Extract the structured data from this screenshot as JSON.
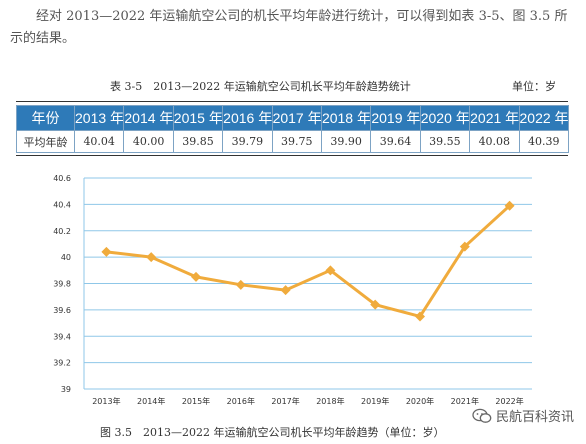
{
  "paragraph": {
    "text": "经对 2013—2022 年运输航空公司的机长平均年龄进行统计，可以得到如表 3-5、图 3.5 所示的结果。"
  },
  "table": {
    "caption": "表 3-5　2013—2022 年运输航空公司机长平均年龄趋势统计",
    "unit": "单位：岁",
    "header": [
      "年份",
      "2013 年",
      "2014 年",
      "2015 年",
      "2016 年",
      "2017 年",
      "2018 年",
      "2019 年",
      "2020 年",
      "2021 年",
      "2022 年"
    ],
    "row": [
      "平均年龄",
      "40.04",
      "40.00",
      "39.85",
      "39.79",
      "39.75",
      "39.90",
      "39.64",
      "39.55",
      "40.08",
      "40.39"
    ]
  },
  "chart_data": {
    "type": "line",
    "categories": [
      "2013年",
      "2014年",
      "2015年",
      "2016年",
      "2017年",
      "2018年",
      "2019年",
      "2020年",
      "2021年",
      "2022年"
    ],
    "series": [
      {
        "values": [
          40.04,
          40.0,
          39.85,
          39.79,
          39.75,
          39.9,
          39.64,
          39.55,
          40.08,
          40.39
        ]
      }
    ],
    "y_ticks": [
      "39",
      "39.2",
      "39.4",
      "39.6",
      "39.8",
      "40",
      "40.2",
      "40.4",
      "40.6"
    ],
    "ylim": [
      39,
      40.6
    ],
    "grid": true,
    "line_color": "#f0ab3c",
    "grid_color": "#8fc7e8",
    "title": "",
    "xlabel": "",
    "ylabel": ""
  },
  "figure_caption": "图 3.5　2013—2022 年运输航空公司机长平均年龄趋势（单位：岁）",
  "watermark": {
    "text": "民航百科资讯",
    "icon": "wechat-icon"
  }
}
